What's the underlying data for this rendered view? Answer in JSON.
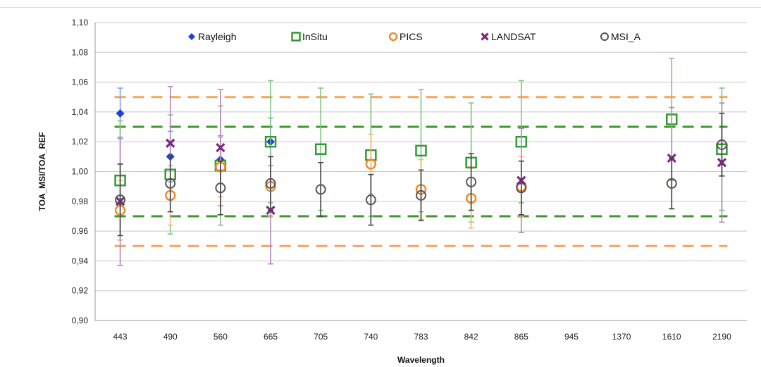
{
  "chart_data": {
    "type": "scatter",
    "title": "",
    "xlabel": "Wavelength",
    "ylabel": "TOA_MSI/TOA_REF",
    "categories": [
      "443",
      "490",
      "560",
      "665",
      "705",
      "740",
      "783",
      "842",
      "865",
      "945",
      "1370",
      "1610",
      "2190"
    ],
    "ylim": [
      0.9,
      1.1
    ],
    "yticks": [
      "0,90",
      "0,92",
      "0,94",
      "0,96",
      "0,98",
      "1,00",
      "1,02",
      "1,04",
      "1,06",
      "1,08",
      "1,10"
    ],
    "grid": true,
    "legend_position": "top",
    "series": [
      {
        "name": "Rayleigh",
        "marker": "diamond",
        "color": "#1f3fe0",
        "errcolor": "#7f9ff0",
        "values": [
          1.039,
          1.01,
          1.008,
          1.02,
          null,
          null,
          null,
          null,
          null,
          null,
          null,
          null,
          null
        ],
        "err": [
          0.017,
          0.017,
          0.016,
          0.016,
          null,
          null,
          null,
          null,
          null,
          null,
          null,
          null,
          null
        ]
      },
      {
        "name": "InSitu",
        "marker": "square",
        "color": "#339933",
        "errcolor": "#7fc47f",
        "values": [
          0.994,
          0.998,
          1.004,
          1.02,
          1.015,
          1.011,
          1.014,
          1.006,
          1.02,
          null,
          null,
          1.035,
          1.015
        ],
        "err": [
          0.04,
          0.04,
          0.04,
          0.041,
          0.041,
          0.041,
          0.041,
          0.04,
          0.041,
          null,
          null,
          0.041,
          0.041
        ]
      },
      {
        "name": "PICS",
        "marker": "circle",
        "color": "#f08a2c",
        "errcolor": "#f5b87f",
        "values": [
          0.974,
          0.984,
          1.003,
          0.99,
          null,
          1.005,
          0.988,
          0.982,
          0.99,
          null,
          null,
          null,
          null
        ],
        "err": [
          0.02,
          0.02,
          0.02,
          0.02,
          null,
          0.02,
          0.02,
          0.02,
          0.02,
          null,
          null,
          null,
          null
        ]
      },
      {
        "name": "LANDSAT",
        "marker": "x",
        "color": "#7b2a82",
        "errcolor": "#b585bb",
        "values": [
          0.98,
          1.019,
          1.016,
          0.974,
          null,
          null,
          null,
          null,
          0.994,
          null,
          null,
          1.009,
          1.006
        ],
        "err": [
          0.043,
          0.038,
          0.039,
          0.036,
          null,
          null,
          null,
          null,
          0.035,
          null,
          null,
          0.034,
          0.04
        ]
      },
      {
        "name": "MSI_A",
        "marker": "open-circle",
        "color": "#555555",
        "errcolor": "#444444",
        "values": [
          0.981,
          0.992,
          0.989,
          0.992,
          0.988,
          0.981,
          0.984,
          0.993,
          0.989,
          null,
          null,
          0.992,
          1.018
        ],
        "err": [
          0.024,
          0.019,
          0.018,
          0.018,
          0.018,
          0.017,
          0.017,
          0.019,
          0.018,
          null,
          null,
          0.017,
          0.021
        ]
      }
    ],
    "reference_lines": [
      {
        "value": 1.05,
        "color": "#f5a65b",
        "style": "dashed"
      },
      {
        "value": 1.03,
        "color": "#3a9a2a",
        "style": "dashed"
      },
      {
        "value": 0.97,
        "color": "#3a9a2a",
        "style": "dashed"
      },
      {
        "value": 0.95,
        "color": "#f5a65b",
        "style": "dashed"
      }
    ]
  }
}
